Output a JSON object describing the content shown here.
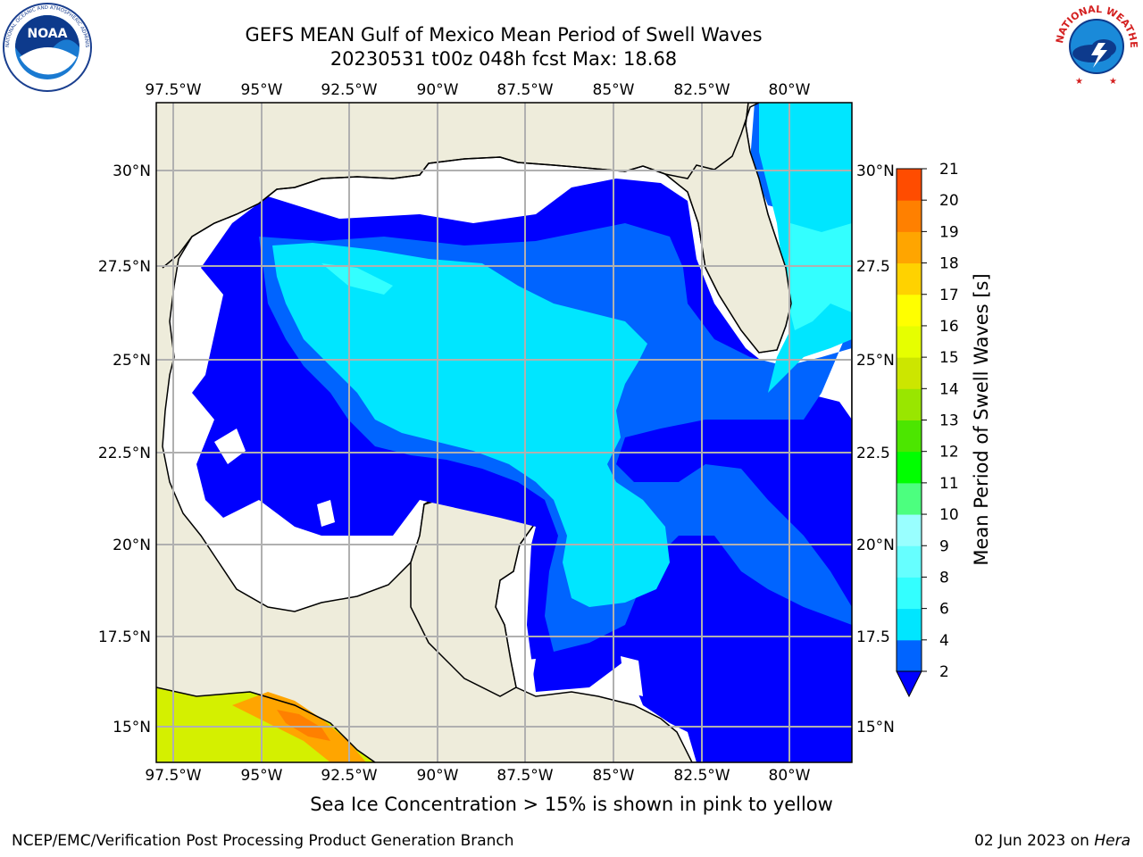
{
  "title_line1": "GEFS MEAN Gulf of Mexico Mean Period of Swell Waves",
  "title_line2": "20230531 t00z 048h fcst   Max: 18.68",
  "lon_ticks": [
    "97.5°W",
    "95°W",
    "92.5°W",
    "90°W",
    "87.5°W",
    "85°W",
    "82.5°W",
    "80°W"
  ],
  "lat_ticks_left": [
    "30°N",
    "27.5°N",
    "25°N",
    "22.5°N",
    "20°N",
    "17.5°N",
    "15°N"
  ],
  "lat_ticks_right": [
    "30°N",
    "27.5",
    "25°N",
    "22.5",
    "20°N",
    "17.5",
    "15°N"
  ],
  "colorbar": {
    "label": "Mean Period of Swell Waves [s]",
    "ticks": [
      "2",
      "4",
      "6",
      "8",
      "9",
      "10",
      "11",
      "12",
      "13",
      "14",
      "15",
      "16",
      "17",
      "18",
      "19",
      "20",
      "21"
    ],
    "colors": [
      "#0064ff",
      "#00e6ff",
      "#33ffff",
      "#66ffff",
      "#99ffff",
      "#4cff7f",
      "#00ff00",
      "#4ce600",
      "#99e600",
      "#cce600",
      "#e6ff00",
      "#ffff00",
      "#ffd200",
      "#ffa500",
      "#ff8000",
      "#ff4c00",
      "#ff1a00",
      "#ff0000"
    ],
    "extend_color": "#0000ff"
  },
  "legend_note": "Sea Ice Concentration > 15% is shown in pink to yellow",
  "footer_left": "NCEP/EMC/Verification Post Processing Product Generation Branch",
  "footer_right_prefix": "02 Jun 2023 on ",
  "footer_right_host": "Hera",
  "logos": {
    "left": {
      "name": "noaa-logo",
      "text": "NOAA",
      "ring_text": "NATIONAL OCEANIC AND ATMOSPHERIC ADMINISTRATION · U.S. DEPARTMENT OF COMMERCE"
    },
    "right": {
      "name": "nws-logo",
      "ring_text": "NATIONAL WEATHER SERVICE"
    }
  },
  "colors": {
    "land": "#eeecdb",
    "grid": "#b0b0b0",
    "deep_blue": "#0000ff",
    "mid_blue": "#0064ff",
    "cyan": "#00e6ff"
  }
}
